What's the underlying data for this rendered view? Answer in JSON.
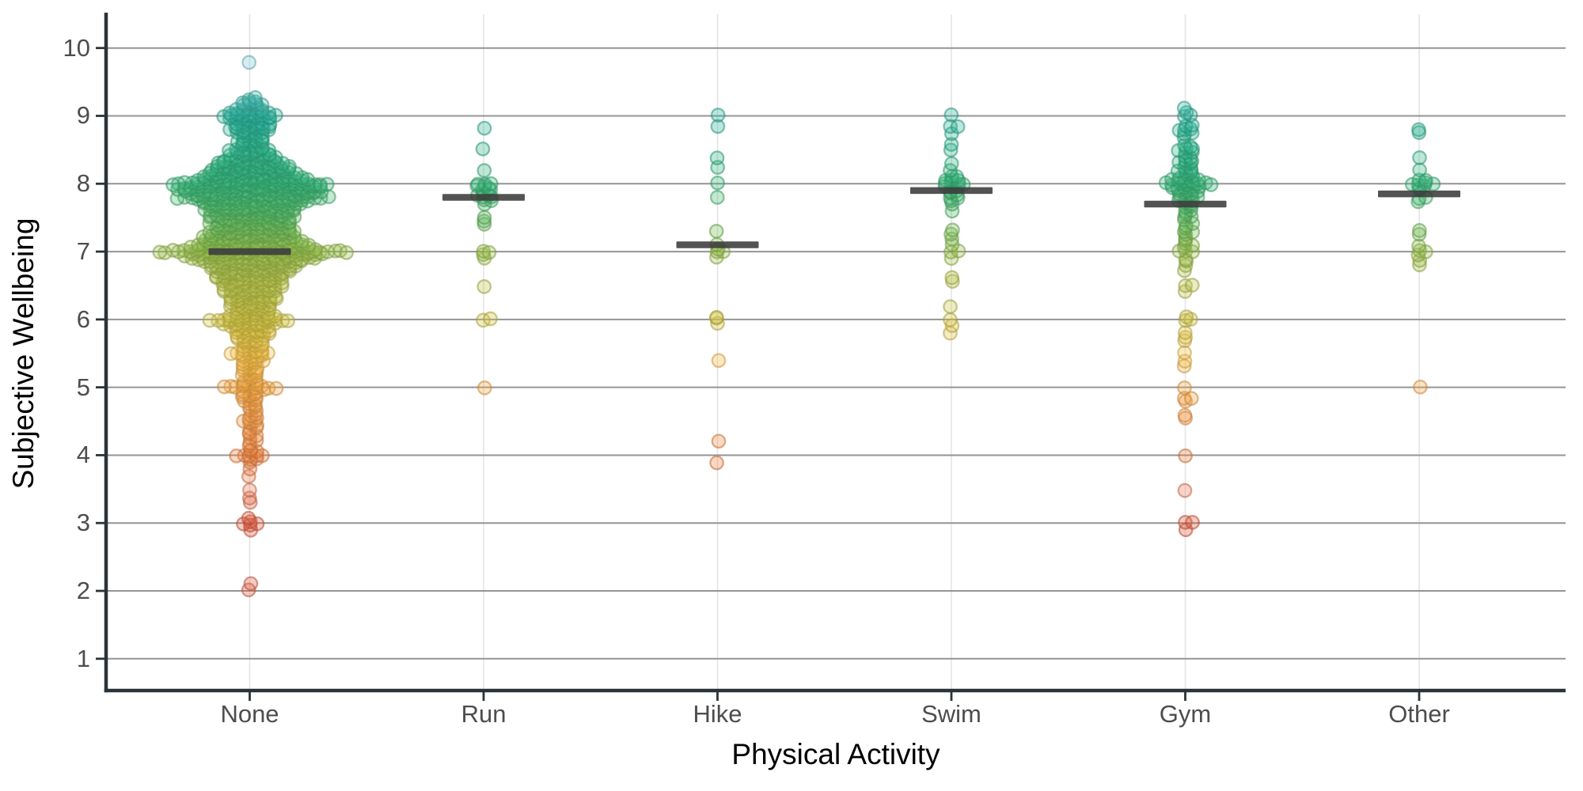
{
  "chart_data": {
    "type": "scatter",
    "subtype": "beeswarm-jitter-with-mean-bars",
    "title": "",
    "xlabel": "Physical Activity",
    "ylabel": "Subjective Wellbeing",
    "categories": [
      "None",
      "Run",
      "Hike",
      "Swim",
      "Gym",
      "Other"
    ],
    "ytick_labels": [
      "1",
      "2",
      "3",
      "4",
      "5",
      "6",
      "7",
      "8",
      "9",
      "10"
    ],
    "ylim": [
      0.55,
      10.45
    ],
    "grid": "horizontal major lines at each integer; faint vertical line at each category",
    "legend": "none",
    "means": {
      "None": 7.0,
      "Run": 7.8,
      "Hike": 7.1,
      "Swim": 7.9,
      "Gym": 7.7,
      "Other": 7.85
    },
    "distributions": {
      "None": [
        [
          9.8,
          1
        ],
        [
          9.25,
          2
        ],
        [
          9.2,
          3
        ],
        [
          9.15,
          4
        ],
        [
          9.1,
          5
        ],
        [
          9.05,
          7
        ],
        [
          9.0,
          9
        ],
        [
          8.95,
          7
        ],
        [
          8.9,
          6
        ],
        [
          8.85,
          6
        ],
        [
          8.8,
          7
        ],
        [
          8.75,
          5
        ],
        [
          8.7,
          4
        ],
        [
          8.65,
          4
        ],
        [
          8.6,
          5
        ],
        [
          8.55,
          4
        ],
        [
          8.5,
          7
        ],
        [
          8.45,
          6
        ],
        [
          8.4,
          8
        ],
        [
          8.35,
          9
        ],
        [
          8.3,
          11
        ],
        [
          8.25,
          12
        ],
        [
          8.2,
          13
        ],
        [
          8.15,
          14
        ],
        [
          8.1,
          16
        ],
        [
          8.05,
          18
        ],
        [
          8.0,
          25
        ],
        [
          7.95,
          22
        ],
        [
          7.9,
          23
        ],
        [
          7.85,
          20
        ],
        [
          7.8,
          24
        ],
        [
          7.75,
          18
        ],
        [
          7.7,
          16
        ],
        [
          7.65,
          14
        ],
        [
          7.6,
          15
        ],
        [
          7.55,
          13
        ],
        [
          7.5,
          14
        ],
        [
          7.45,
          12
        ],
        [
          7.4,
          13
        ],
        [
          7.35,
          12
        ],
        [
          7.3,
          14
        ],
        [
          7.25,
          13
        ],
        [
          7.2,
          15
        ],
        [
          7.15,
          16
        ],
        [
          7.1,
          18
        ],
        [
          7.05,
          20
        ],
        [
          7.0,
          30
        ],
        [
          6.95,
          22
        ],
        [
          6.9,
          20
        ],
        [
          6.85,
          16
        ],
        [
          6.8,
          14
        ],
        [
          6.75,
          13
        ],
        [
          6.7,
          12
        ],
        [
          6.65,
          11
        ],
        [
          6.6,
          11
        ],
        [
          6.55,
          10
        ],
        [
          6.5,
          10
        ],
        [
          6.45,
          9
        ],
        [
          6.4,
          9
        ],
        [
          6.35,
          8
        ],
        [
          6.3,
          8
        ],
        [
          6.25,
          7
        ],
        [
          6.2,
          7
        ],
        [
          6.15,
          6
        ],
        [
          6.1,
          6
        ],
        [
          6.05,
          8
        ],
        [
          6.0,
          13
        ],
        [
          5.95,
          9
        ],
        [
          5.9,
          7
        ],
        [
          5.85,
          6
        ],
        [
          5.8,
          6
        ],
        [
          5.75,
          5
        ],
        [
          5.7,
          5
        ],
        [
          5.65,
          4
        ],
        [
          5.6,
          4
        ],
        [
          5.55,
          4
        ],
        [
          5.5,
          7
        ],
        [
          5.45,
          4
        ],
        [
          5.4,
          4
        ],
        [
          5.35,
          3
        ],
        [
          5.3,
          3
        ],
        [
          5.25,
          3
        ],
        [
          5.2,
          3
        ],
        [
          5.15,
          2
        ],
        [
          5.1,
          3
        ],
        [
          5.05,
          3
        ],
        [
          5.0,
          9
        ],
        [
          4.95,
          4
        ],
        [
          4.9,
          3
        ],
        [
          4.85,
          3
        ],
        [
          4.8,
          3
        ],
        [
          4.75,
          2
        ],
        [
          4.7,
          2
        ],
        [
          4.65,
          2
        ],
        [
          4.6,
          2
        ],
        [
          4.55,
          2
        ],
        [
          4.5,
          3
        ],
        [
          4.45,
          2
        ],
        [
          4.4,
          2
        ],
        [
          4.35,
          1
        ],
        [
          4.3,
          2
        ],
        [
          4.25,
          1
        ],
        [
          4.2,
          2
        ],
        [
          4.15,
          1
        ],
        [
          4.1,
          1
        ],
        [
          4.05,
          2
        ],
        [
          4.0,
          5
        ],
        [
          3.95,
          2
        ],
        [
          3.9,
          1
        ],
        [
          3.8,
          1
        ],
        [
          3.7,
          1
        ],
        [
          3.5,
          1
        ],
        [
          3.35,
          1
        ],
        [
          3.3,
          1
        ],
        [
          3.05,
          1
        ],
        [
          3.0,
          3
        ],
        [
          2.95,
          1
        ],
        [
          2.9,
          1
        ],
        [
          2.1,
          1
        ],
        [
          2.0,
          1
        ]
      ],
      "Run": [
        [
          8.8,
          1
        ],
        [
          8.5,
          1
        ],
        [
          8.2,
          1
        ],
        [
          8.0,
          3
        ],
        [
          7.95,
          3
        ],
        [
          7.9,
          2
        ],
        [
          7.85,
          3
        ],
        [
          7.8,
          2
        ],
        [
          7.75,
          2
        ],
        [
          7.7,
          1
        ],
        [
          7.5,
          1
        ],
        [
          7.45,
          1
        ],
        [
          7.4,
          1
        ],
        [
          7.0,
          2
        ],
        [
          6.95,
          1
        ],
        [
          6.9,
          1
        ],
        [
          6.5,
          1
        ],
        [
          6.0,
          2
        ],
        [
          5.0,
          1
        ]
      ],
      "Hike": [
        [
          9.0,
          1
        ],
        [
          8.85,
          1
        ],
        [
          8.4,
          1
        ],
        [
          8.25,
          1
        ],
        [
          8.0,
          1
        ],
        [
          7.8,
          1
        ],
        [
          7.3,
          1
        ],
        [
          7.1,
          1
        ],
        [
          7.05,
          1
        ],
        [
          7.0,
          2
        ],
        [
          6.9,
          1
        ],
        [
          6.05,
          1
        ],
        [
          6.0,
          1
        ],
        [
          5.95,
          1
        ],
        [
          5.4,
          1
        ],
        [
          4.2,
          1
        ],
        [
          3.9,
          1
        ]
      ],
      "Swim": [
        [
          9.0,
          1
        ],
        [
          8.85,
          2
        ],
        [
          8.75,
          1
        ],
        [
          8.6,
          1
        ],
        [
          8.5,
          1
        ],
        [
          8.3,
          1
        ],
        [
          8.2,
          1
        ],
        [
          8.1,
          2
        ],
        [
          8.05,
          3
        ],
        [
          8.0,
          4
        ],
        [
          7.95,
          3
        ],
        [
          7.9,
          2
        ],
        [
          7.85,
          2
        ],
        [
          7.8,
          2
        ],
        [
          7.75,
          1
        ],
        [
          7.7,
          1
        ],
        [
          7.6,
          1
        ],
        [
          7.3,
          1
        ],
        [
          7.25,
          1
        ],
        [
          7.2,
          1
        ],
        [
          7.1,
          1
        ],
        [
          7.0,
          2
        ],
        [
          6.9,
          1
        ],
        [
          6.6,
          1
        ],
        [
          6.55,
          1
        ],
        [
          6.2,
          1
        ],
        [
          6.0,
          1
        ],
        [
          5.9,
          1
        ],
        [
          5.8,
          1
        ]
      ],
      "Gym": [
        [
          9.1,
          1
        ],
        [
          9.05,
          1
        ],
        [
          9.0,
          2
        ],
        [
          8.85,
          2
        ],
        [
          8.8,
          3
        ],
        [
          8.75,
          2
        ],
        [
          8.7,
          1
        ],
        [
          8.55,
          2
        ],
        [
          8.5,
          3
        ],
        [
          8.45,
          2
        ],
        [
          8.4,
          2
        ],
        [
          8.35,
          2
        ],
        [
          8.3,
          3
        ],
        [
          8.25,
          2
        ],
        [
          8.2,
          3
        ],
        [
          8.15,
          2
        ],
        [
          8.1,
          3
        ],
        [
          8.05,
          5
        ],
        [
          8.0,
          8
        ],
        [
          7.95,
          5
        ],
        [
          7.9,
          4
        ],
        [
          7.85,
          3
        ],
        [
          7.8,
          4
        ],
        [
          7.75,
          3
        ],
        [
          7.7,
          2
        ],
        [
          7.65,
          2
        ],
        [
          7.6,
          2
        ],
        [
          7.55,
          1
        ],
        [
          7.5,
          2
        ],
        [
          7.45,
          1
        ],
        [
          7.4,
          2
        ],
        [
          7.35,
          1
        ],
        [
          7.3,
          2
        ],
        [
          7.25,
          1
        ],
        [
          7.2,
          1
        ],
        [
          7.15,
          1
        ],
        [
          7.1,
          2
        ],
        [
          7.05,
          1
        ],
        [
          7.0,
          3
        ],
        [
          6.9,
          1
        ],
        [
          6.85,
          1
        ],
        [
          6.8,
          1
        ],
        [
          6.7,
          1
        ],
        [
          6.5,
          2
        ],
        [
          6.4,
          1
        ],
        [
          6.05,
          1
        ],
        [
          6.0,
          2
        ],
        [
          5.8,
          1
        ],
        [
          5.75,
          1
        ],
        [
          5.7,
          1
        ],
        [
          5.5,
          1
        ],
        [
          5.4,
          1
        ],
        [
          5.3,
          1
        ],
        [
          5.0,
          1
        ],
        [
          4.85,
          2
        ],
        [
          4.8,
          1
        ],
        [
          4.6,
          1
        ],
        [
          4.55,
          1
        ],
        [
          4.0,
          1
        ],
        [
          3.5,
          1
        ],
        [
          3.0,
          2
        ],
        [
          2.9,
          1
        ]
      ],
      "Other": [
        [
          8.8,
          1
        ],
        [
          8.75,
          1
        ],
        [
          8.4,
          1
        ],
        [
          8.2,
          1
        ],
        [
          8.05,
          2
        ],
        [
          8.0,
          4
        ],
        [
          7.95,
          2
        ],
        [
          7.9,
          1
        ],
        [
          7.8,
          2
        ],
        [
          7.75,
          1
        ],
        [
          7.3,
          1
        ],
        [
          7.25,
          1
        ],
        [
          7.1,
          1
        ],
        [
          7.0,
          2
        ],
        [
          6.95,
          1
        ],
        [
          6.85,
          1
        ],
        [
          6.8,
          1
        ],
        [
          5.0,
          1
        ]
      ]
    },
    "value_color_stops": [
      [
        2.0,
        "#e4614a"
      ],
      [
        3.0,
        "#e05a3d"
      ],
      [
        3.5,
        "#ea7a58"
      ],
      [
        4.0,
        "#ef8440"
      ],
      [
        4.5,
        "#f49a4b"
      ],
      [
        5.0,
        "#f7a845"
      ],
      [
        5.5,
        "#f4c14a"
      ],
      [
        6.0,
        "#d2c545"
      ],
      [
        6.5,
        "#bac34c"
      ],
      [
        7.0,
        "#9cc14d"
      ],
      [
        7.3,
        "#76be58"
      ],
      [
        7.6,
        "#55bb68"
      ],
      [
        8.0,
        "#3ab87b"
      ],
      [
        8.5,
        "#30b68b"
      ],
      [
        9.0,
        "#2cb49d"
      ],
      [
        9.5,
        "#5ec0c4"
      ],
      [
        10.0,
        "#8fd0e2"
      ]
    ]
  },
  "style": {
    "background": "#ffffff",
    "mean_bar_color": "#3b3b3b",
    "axis_line_color": "#2c3338",
    "grid_major_color": "#949494",
    "grid_vertical_color": "#e4e4e4",
    "tick_label_color": "#4d4d4d",
    "title_color": "#000000"
  }
}
